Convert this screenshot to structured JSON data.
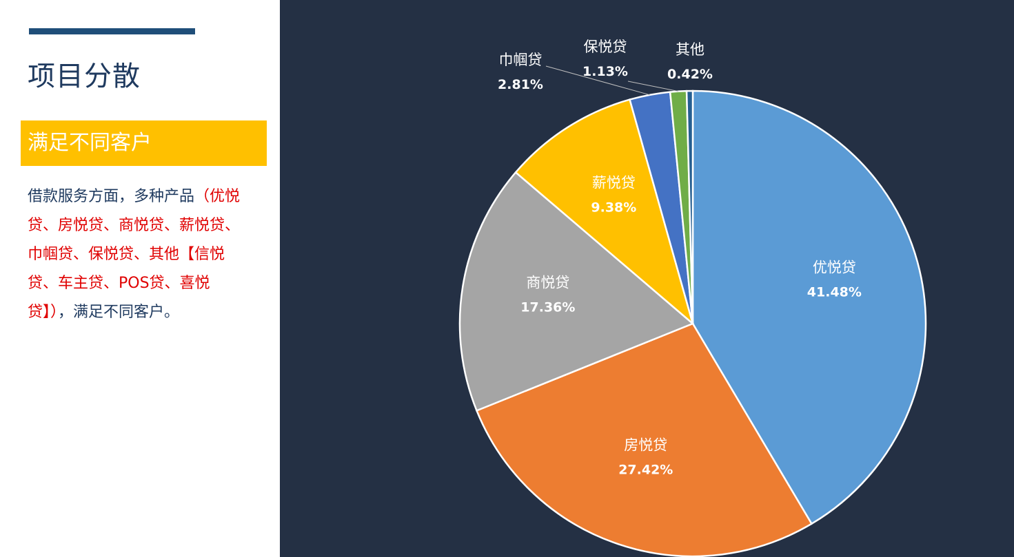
{
  "header": {
    "title": "项目分散"
  },
  "banner": {
    "text": "满足不同客户"
  },
  "description": {
    "part1": "借款服务方面，多种产品",
    "part2": "（优悦贷、房悦贷、商悦贷、薪悦贷、巾帼贷、保悦贷、其他【信悦贷、车主贷、POS贷、喜悦贷】）",
    "part3": "，满足不同客户。"
  },
  "colors": {
    "accent_bar": "#1f4e79",
    "banner": "#ffc000",
    "highlight_text": "#e00000",
    "chart_background": "#243044"
  },
  "chart_data": {
    "type": "pie",
    "title": "",
    "start_angle_deg": 0,
    "direction": "clockwise",
    "slices": [
      {
        "label": "优悦贷",
        "value": 41.48,
        "display": "41.48%",
        "color": "#5b9bd5"
      },
      {
        "label": "房悦贷",
        "value": 27.42,
        "display": "27.42%",
        "color": "#ed7d31"
      },
      {
        "label": "商悦贷",
        "value": 17.36,
        "display": "17.36%",
        "color": "#a5a5a5"
      },
      {
        "label": "薪悦贷",
        "value": 9.38,
        "display": "9.38%",
        "color": "#ffc000"
      },
      {
        "label": "巾帼贷",
        "value": 2.81,
        "display": "2.81%",
        "color": "#4472c4"
      },
      {
        "label": "保悦贷",
        "value": 1.13,
        "display": "1.13%",
        "color": "#70ad47"
      },
      {
        "label": "其他",
        "value": 0.42,
        "display": "0.42%",
        "color": "#255e91"
      }
    ]
  }
}
